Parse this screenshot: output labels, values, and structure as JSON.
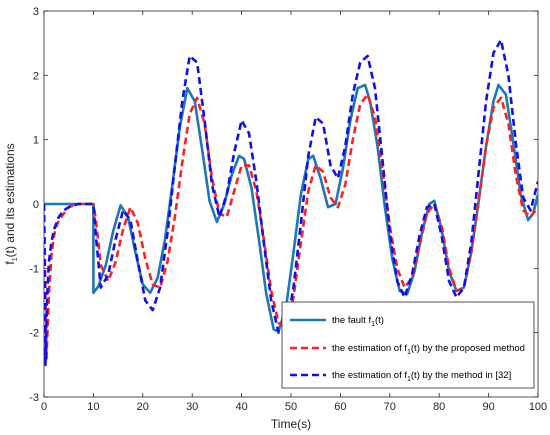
{
  "chart_data": {
    "type": "line",
    "title": "",
    "xlabel": "Time(s)",
    "ylabel_parts": [
      "f",
      "1",
      "(t) and its estimations"
    ],
    "xlim": [
      0,
      100
    ],
    "ylim": [
      -3,
      3
    ],
    "xticks": [
      0,
      10,
      20,
      30,
      40,
      50,
      60,
      70,
      80,
      90,
      100
    ],
    "yticks": [
      -3,
      -2,
      -1,
      0,
      1,
      2,
      3
    ],
    "grid": false,
    "legend_position": "bottom-right",
    "series": [
      {
        "name_parts": [
          "the fault f",
          "1",
          "(t)"
        ],
        "color": "#1f77b4",
        "style": "solid",
        "x": [
          0,
          10,
          10.01,
          11,
          12.5,
          14,
          15.5,
          17,
          18.5,
          20,
          21.5,
          23,
          24.5,
          26,
          27.5,
          29,
          30.5,
          32,
          33.5,
          35,
          36.5,
          38,
          39.5,
          40.5,
          42,
          43.5,
          45,
          46.5,
          47.5,
          49,
          50.5,
          52,
          53.5,
          54.5,
          56,
          57.5,
          59,
          60.5,
          62,
          63.5,
          65,
          66,
          67.5,
          69,
          70.5,
          72,
          73.5,
          75,
          76.5,
          78,
          79,
          80.5,
          82,
          83.5,
          85,
          86.5,
          88,
          89.5,
          91,
          92,
          93.5,
          95,
          96.5,
          98,
          99,
          100
        ],
        "y": [
          0,
          0,
          -1.38,
          -1.28,
          -0.95,
          -0.42,
          -0.02,
          -0.2,
          -0.75,
          -1.25,
          -1.38,
          -1.15,
          -0.55,
          0.3,
          1.2,
          1.8,
          1.6,
          0.85,
          0.05,
          -0.28,
          0.0,
          0.45,
          0.75,
          0.7,
          0.25,
          -0.55,
          -1.4,
          -1.95,
          -1.98,
          -1.6,
          -0.75,
          0.15,
          0.7,
          0.75,
          0.4,
          -0.05,
          0.0,
          0.55,
          1.3,
          1.8,
          1.85,
          1.6,
          0.9,
          -0.05,
          -0.85,
          -1.35,
          -1.4,
          -1.05,
          -0.45,
          0.0,
          0.05,
          -0.4,
          -1.05,
          -1.35,
          -1.3,
          -0.75,
          0.05,
          0.9,
          1.6,
          1.85,
          1.7,
          0.95,
          0.15,
          -0.25,
          -0.15,
          0.15
        ]
      },
      {
        "name_parts": [
          "the estimation of f",
          "1",
          "(t) by the proposed method"
        ],
        "color": "#ff2020",
        "style": "dashed",
        "x": [
          0,
          0.5,
          1,
          1.5,
          2,
          2.5,
          3,
          3.5,
          4,
          4.5,
          5,
          6,
          7,
          8,
          9,
          10,
          10.5,
          11.5,
          13,
          14.5,
          16,
          17.5,
          19,
          20.5,
          22,
          23.5,
          25,
          26.5,
          28,
          29.5,
          31,
          32.5,
          34,
          35.5,
          37,
          38.5,
          40,
          41.5,
          43,
          44.5,
          46,
          47.5,
          49,
          50.5,
          52,
          53.5,
          55,
          56.5,
          58,
          59.5,
          61,
          62.5,
          64,
          65.5,
          67,
          68.5,
          70,
          71.5,
          73,
          74.5,
          76,
          77.5,
          79,
          80.5,
          82,
          83.5,
          85,
          86.5,
          88,
          89.5,
          91,
          92.5,
          94,
          95.5,
          97,
          98.5,
          100
        ],
        "y": [
          0,
          -2.4,
          -1.4,
          -0.8,
          -0.5,
          -0.35,
          -0.25,
          -0.2,
          -0.15,
          -0.1,
          -0.05,
          -0.02,
          0,
          0,
          0,
          0,
          -0.25,
          -0.95,
          -1.2,
          -0.9,
          -0.4,
          -0.05,
          -0.3,
          -0.85,
          -1.25,
          -1.3,
          -0.9,
          -0.2,
          0.65,
          1.4,
          1.65,
          1.25,
          0.4,
          -0.15,
          -0.2,
          0.2,
          0.6,
          0.6,
          0.2,
          -0.55,
          -1.35,
          -1.85,
          -1.9,
          -1.45,
          -0.6,
          0.2,
          0.6,
          0.5,
          0.1,
          -0.05,
          0.3,
          1.0,
          1.55,
          1.7,
          1.35,
          0.55,
          -0.35,
          -1.0,
          -1.3,
          -1.15,
          -0.65,
          -0.15,
          0.0,
          -0.35,
          -1.0,
          -1.35,
          -1.3,
          -0.75,
          0.05,
          0.9,
          1.5,
          1.65,
          1.25,
          0.45,
          -0.1,
          -0.2,
          -0.05
        ]
      },
      {
        "name_parts": [
          "the estimation of f",
          "1",
          "(t) by the method in [32]"
        ],
        "color": "#1010ee",
        "style": "dashed",
        "x": [
          0,
          0.3,
          0.6,
          1,
          1.5,
          2,
          2.5,
          3,
          3.5,
          4,
          5,
          6,
          7,
          8,
          9,
          10,
          10.5,
          11.5,
          13,
          14.5,
          16,
          17.5,
          19,
          20.5,
          22,
          23.5,
          25,
          26.5,
          28,
          29.5,
          31,
          32.5,
          34,
          35.5,
          37,
          38.5,
          40,
          41.5,
          43,
          44.5,
          46,
          47.5,
          49,
          50.5,
          52,
          53.5,
          55,
          56.5,
          58,
          59.5,
          61,
          62.5,
          64,
          65.5,
          67,
          68.5,
          70,
          71.5,
          73,
          74.5,
          76,
          77.5,
          79,
          80.5,
          82,
          83.5,
          85,
          86.5,
          88,
          89.5,
          91,
          92.5,
          94,
          95.5,
          97,
          98.5,
          100
        ],
        "y": [
          0,
          -2.5,
          -1.5,
          -0.9,
          -0.6,
          -0.4,
          -0.3,
          -0.2,
          -0.15,
          -0.1,
          -0.05,
          -0.02,
          0,
          0,
          0,
          0,
          -0.5,
          -1.3,
          -1.1,
          -0.55,
          -0.1,
          -0.25,
          -0.9,
          -1.5,
          -1.65,
          -1.3,
          -0.45,
          0.6,
          1.6,
          2.3,
          2.2,
          1.3,
          0.3,
          -0.2,
          0.15,
          0.8,
          1.3,
          1.1,
          0.35,
          -0.6,
          -1.5,
          -2.0,
          -1.95,
          -1.3,
          -0.3,
          0.75,
          1.35,
          1.25,
          0.6,
          0.4,
          0.9,
          1.7,
          2.2,
          2.3,
          1.8,
          0.7,
          -0.45,
          -1.2,
          -1.45,
          -1.1,
          -0.5,
          -0.05,
          0.0,
          -0.5,
          -1.2,
          -1.45,
          -1.3,
          -0.6,
          0.5,
          1.6,
          2.35,
          2.55,
          2.0,
          0.95,
          0.1,
          -0.1,
          0.35
        ]
      }
    ]
  }
}
